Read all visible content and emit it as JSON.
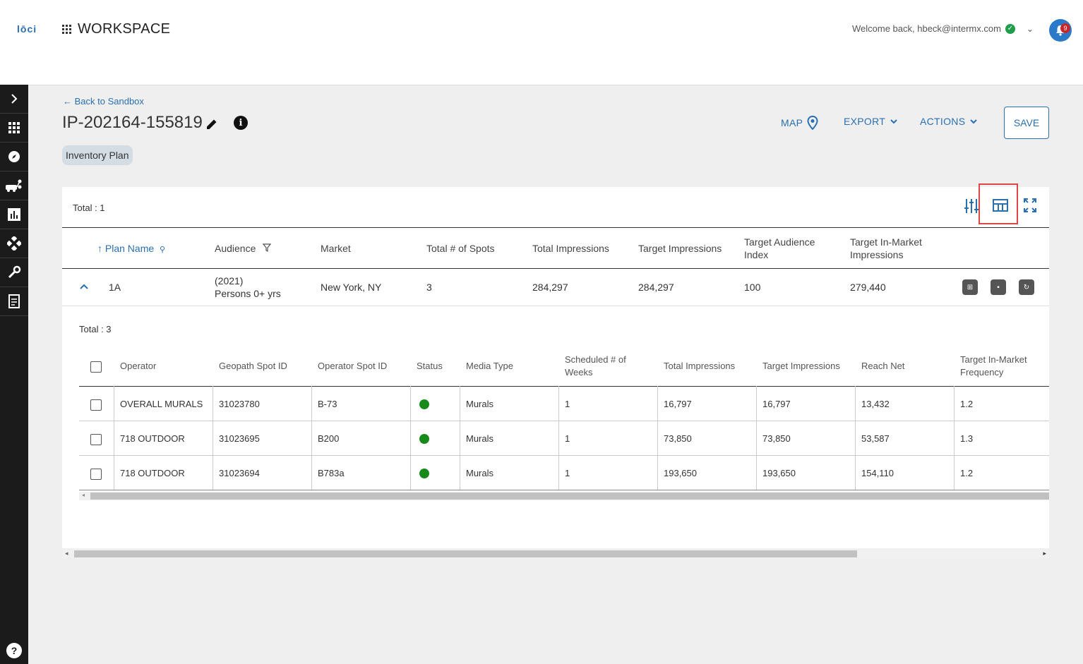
{
  "app": {
    "logo": "lōci",
    "workspace_title": "WORKSPACE",
    "welcome": "Welcome back, hbeck@intermx.com",
    "notifications": "9"
  },
  "nav": {
    "back_link": "Back to Sandbox"
  },
  "plan": {
    "title": "IP-202164-155819",
    "chip": "Inventory Plan"
  },
  "actions": {
    "map": "MAP",
    "export": "EXPORT",
    "actions": "ACTIONS",
    "save": "SAVE"
  },
  "main_table": {
    "total": "Total : 1",
    "headers": [
      "Plan Name",
      "Audience",
      "Market",
      "Total # of Spots",
      "Total Impressions",
      "Target Impressions",
      "Target Audience Index",
      "Target In-Market Impressions"
    ],
    "row": {
      "plan_name": "1A",
      "audience_year": "(2021)",
      "audience_name": "Persons 0+ yrs",
      "market": "New York, NY",
      "spots": "3",
      "total_impressions": "284,297",
      "target_impressions": "284,297",
      "target_index": "100",
      "target_in_market": "279,440"
    }
  },
  "spot_table": {
    "total": "Total : 3",
    "headers": [
      "Operator",
      "Geopath Spot ID",
      "Operator Spot ID",
      "Status",
      "Media Type",
      "Scheduled # of Weeks",
      "Total Impressions",
      "Target Impressions",
      "Reach Net",
      "Target In-Market Frequency"
    ],
    "rows": [
      {
        "operator": "OVERALL MURALS",
        "geopath_id": "31023780",
        "operator_id": "B-73",
        "media_type": "Murals",
        "weeks": "1",
        "total_imp": "16,797",
        "target_imp": "16,797",
        "reach_net": "13,432",
        "freq": "1.2"
      },
      {
        "operator": "718 OUTDOOR",
        "geopath_id": "31023695",
        "operator_id": "B200",
        "media_type": "Murals",
        "weeks": "1",
        "total_imp": "73,850",
        "target_imp": "73,850",
        "reach_net": "53,587",
        "freq": "1.3"
      },
      {
        "operator": "718 OUTDOOR",
        "geopath_id": "31023694",
        "operator_id": "B783a",
        "media_type": "Murals",
        "weeks": "1",
        "total_imp": "193,650",
        "target_imp": "193,650",
        "reach_net": "154,110",
        "freq": "1.2"
      }
    ]
  },
  "colors": {
    "accent": "#2a6fb0",
    "sidebar": "#1b1b1b",
    "status_active": "#188a1c",
    "highlight": "#e04646"
  }
}
